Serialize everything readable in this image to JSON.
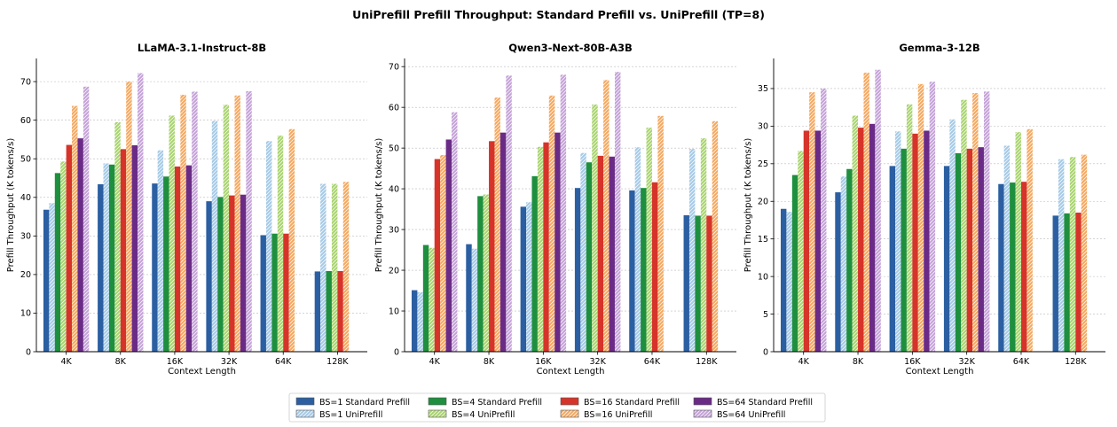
{
  "title": "UniPrefill Prefill Throughput: Standard Prefill vs. UniPrefill  (TP=8)",
  "colors": {
    "bs1_std": "#2b5fa2",
    "bs1_uni": "#a3c9e6",
    "bs4_std": "#1e8f3e",
    "bs4_uni": "#a6d36a",
    "bs16_std": "#d6342a",
    "bs16_uni": "#f5a65b",
    "bs64_std": "#6a2b86",
    "bs64_uni": "#c3a0d7"
  },
  "legend": [
    {
      "label": "BS=1  Standard Prefill",
      "key": "bs1_std",
      "hatch": false
    },
    {
      "label": "BS=1  UniPrefill",
      "key": "bs1_uni",
      "hatch": true
    },
    {
      "label": "BS=4  Standard Prefill",
      "key": "bs4_std",
      "hatch": false
    },
    {
      "label": "BS=4  UniPrefill",
      "key": "bs4_uni",
      "hatch": true
    },
    {
      "label": "BS=16  Standard Prefill",
      "key": "bs16_std",
      "hatch": false
    },
    {
      "label": "BS=16  UniPrefill",
      "key": "bs16_uni",
      "hatch": true
    },
    {
      "label": "BS=64  Standard Prefill",
      "key": "bs64_std",
      "hatch": false
    },
    {
      "label": "BS=64  UniPrefill",
      "key": "bs64_uni",
      "hatch": true
    }
  ],
  "chart_data": [
    {
      "type": "bar",
      "title": "LLaMA-3.1-Instruct-8B",
      "xlabel": "Context Length",
      "ylabel": "Prefill Throughput (K tokens/s)",
      "ylim": [
        0,
        76
      ],
      "yticks": [
        0,
        10,
        20,
        30,
        40,
        50,
        60,
        70
      ],
      "grid": true,
      "categories": [
        "4K",
        "8K",
        "16K",
        "32K",
        "64K",
        "128K"
      ],
      "series": [
        {
          "name": "BS=1  Standard Prefill",
          "key": "bs1_std",
          "values": [
            36.8,
            43.4,
            43.6,
            39.0,
            30.2,
            20.8
          ]
        },
        {
          "name": "BS=1  UniPrefill",
          "key": "bs1_uni",
          "values": [
            38.5,
            48.8,
            52.2,
            59.8,
            54.6,
            43.5
          ]
        },
        {
          "name": "BS=4  Standard Prefill",
          "key": "bs4_std",
          "values": [
            46.3,
            48.5,
            45.4,
            40.1,
            30.6,
            20.9
          ]
        },
        {
          "name": "BS=4  UniPrefill",
          "key": "bs4_uni",
          "values": [
            49.3,
            59.5,
            61.2,
            64.0,
            56.0,
            43.5
          ]
        },
        {
          "name": "BS=16  Standard Prefill",
          "key": "bs16_std",
          "values": [
            53.6,
            52.5,
            48.0,
            40.5,
            30.6,
            20.9
          ]
        },
        {
          "name": "BS=16  UniPrefill",
          "key": "bs16_uni",
          "values": [
            63.7,
            70.0,
            66.6,
            66.4,
            57.7,
            44.0
          ]
        },
        {
          "name": "BS=64  Standard Prefill",
          "key": "bs64_std",
          "values": [
            55.3,
            53.5,
            48.3,
            40.7,
            null,
            null
          ]
        },
        {
          "name": "BS=64  UniPrefill",
          "key": "bs64_uni",
          "values": [
            68.7,
            72.2,
            67.4,
            67.5,
            null,
            null
          ]
        }
      ]
    },
    {
      "type": "bar",
      "title": "Qwen3-Next-80B-A3B",
      "xlabel": "Context Length",
      "ylabel": "Prefill Throughput (K tokens/s)",
      "ylim": [
        0,
        72
      ],
      "yticks": [
        0,
        10,
        20,
        30,
        40,
        50,
        60,
        70
      ],
      "grid": true,
      "categories": [
        "4K",
        "8K",
        "16K",
        "32K",
        "64K",
        "128K"
      ],
      "series": [
        {
          "name": "BS=1  Standard Prefill",
          "key": "bs1_std",
          "values": [
            15.1,
            26.4,
            35.6,
            40.2,
            39.6,
            33.5
          ]
        },
        {
          "name": "BS=1  UniPrefill",
          "key": "bs1_uni",
          "values": [
            14.6,
            25.3,
            36.7,
            48.8,
            50.2,
            49.8
          ]
        },
        {
          "name": "BS=4  Standard Prefill",
          "key": "bs4_std",
          "values": [
            26.2,
            38.2,
            43.1,
            46.5,
            40.2,
            33.4
          ]
        },
        {
          "name": "BS=4  UniPrefill",
          "key": "bs4_uni",
          "values": [
            25.5,
            38.6,
            50.3,
            60.7,
            55.0,
            52.4
          ]
        },
        {
          "name": "BS=16  Standard Prefill",
          "key": "bs16_std",
          "values": [
            47.3,
            51.7,
            51.4,
            48.1,
            41.6,
            33.4
          ]
        },
        {
          "name": "BS=16  UniPrefill",
          "key": "bs16_uni",
          "values": [
            48.3,
            62.4,
            62.9,
            66.7,
            57.9,
            56.6
          ]
        },
        {
          "name": "BS=64  Standard Prefill",
          "key": "bs64_std",
          "values": [
            52.1,
            53.8,
            53.8,
            47.9,
            null,
            null
          ]
        },
        {
          "name": "BS=64  UniPrefill",
          "key": "bs64_uni",
          "values": [
            58.8,
            67.8,
            68.0,
            68.7,
            null,
            null
          ]
        }
      ]
    },
    {
      "type": "bar",
      "title": "Gemma-3-12B",
      "xlabel": "Context Length",
      "ylabel": "Prefill Throughput (K tokens/s)",
      "ylim": [
        0,
        39
      ],
      "yticks": [
        0,
        5,
        10,
        15,
        20,
        25,
        30,
        35
      ],
      "grid": true,
      "categories": [
        "4K",
        "8K",
        "16K",
        "32K",
        "64K",
        "128K"
      ],
      "series": [
        {
          "name": "BS=1  Standard Prefill",
          "key": "bs1_std",
          "values": [
            19.0,
            21.2,
            24.7,
            24.7,
            22.3,
            18.1
          ]
        },
        {
          "name": "BS=1  UniPrefill",
          "key": "bs1_uni",
          "values": [
            18.6,
            23.3,
            29.3,
            30.9,
            27.4,
            25.6
          ]
        },
        {
          "name": "BS=4  Standard Prefill",
          "key": "bs4_std",
          "values": [
            23.5,
            24.3,
            27.0,
            26.4,
            22.5,
            18.4
          ]
        },
        {
          "name": "BS=4  UniPrefill",
          "key": "bs4_uni",
          "values": [
            26.7,
            31.4,
            32.9,
            33.5,
            29.2,
            25.9
          ]
        },
        {
          "name": "BS=16  Standard Prefill",
          "key": "bs16_std",
          "values": [
            29.4,
            29.8,
            29.0,
            27.0,
            22.6,
            18.5
          ]
        },
        {
          "name": "BS=16  UniPrefill",
          "key": "bs16_uni",
          "values": [
            34.5,
            37.1,
            35.6,
            34.4,
            29.6,
            26.2
          ]
        },
        {
          "name": "BS=64  Standard Prefill",
          "key": "bs64_std",
          "values": [
            29.4,
            30.3,
            29.4,
            27.2,
            null,
            null
          ]
        },
        {
          "name": "BS=64  UniPrefill",
          "key": "bs64_uni",
          "values": [
            35.0,
            37.5,
            35.9,
            34.6,
            null,
            null
          ]
        }
      ]
    }
  ]
}
